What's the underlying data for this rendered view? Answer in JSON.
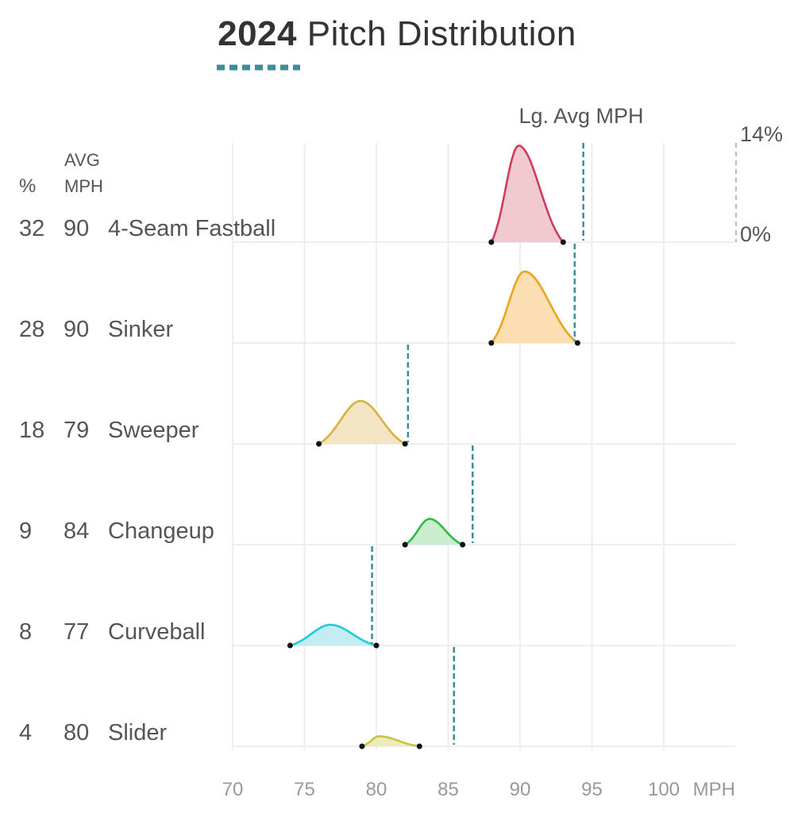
{
  "title": {
    "year": "2024",
    "text": "Pitch Distribution"
  },
  "headers": {
    "pct": "%",
    "avg_line1": "AVG",
    "avg_line2": "MPH"
  },
  "lg_avg_label": "Lg. Avg MPH",
  "colors": {
    "accent": "#3f8c99",
    "grid": "#eeeeee",
    "text": "#555555",
    "axis_text": "#999999"
  },
  "chart_data": {
    "type": "area",
    "x_axis": {
      "ticks": [
        70,
        75,
        80,
        85,
        90,
        95,
        100
      ],
      "unit_label": "MPH",
      "range": [
        66,
        101
      ]
    },
    "density_scale": {
      "min_label": "0%",
      "max_label": "14%",
      "min": 0,
      "max": 14
    },
    "pitches": [
      {
        "name": "4-Seam Fastball",
        "pct": "32",
        "avg_mph": "90",
        "lg_avg_mph": 94.4,
        "min_mph": 88,
        "max_mph": 93,
        "peak_mph": 89.9,
        "peak_density": 13.5,
        "color": "#cf3d5b",
        "fill": "#f0c3cc"
      },
      {
        "name": "Sinker",
        "pct": "28",
        "avg_mph": "90",
        "lg_avg_mph": 93.8,
        "min_mph": 88,
        "max_mph": 94,
        "peak_mph": 90.3,
        "peak_density": 10.0,
        "color": "#eaa51c",
        "fill": "#fbdcab"
      },
      {
        "name": "Sweeper",
        "pct": "18",
        "avg_mph": "79",
        "lg_avg_mph": 82.2,
        "min_mph": 76,
        "max_mph": 82,
        "peak_mph": 78.9,
        "peak_density": 6.0,
        "color": "#d8b23f",
        "fill": "#f2e2bc"
      },
      {
        "name": "Changeup",
        "pct": "9",
        "avg_mph": "84",
        "lg_avg_mph": 86.7,
        "min_mph": 82,
        "max_mph": 86,
        "peak_mph": 83.7,
        "peak_density": 3.6,
        "color": "#2dbb45",
        "fill": "#c3ebc9"
      },
      {
        "name": "Curveball",
        "pct": "8",
        "avg_mph": "77",
        "lg_avg_mph": 79.7,
        "min_mph": 74,
        "max_mph": 80,
        "peak_mph": 76.8,
        "peak_density": 2.9,
        "color": "#22c8dc",
        "fill": "#bdebf1"
      },
      {
        "name": "Slider",
        "pct": "4",
        "avg_mph": "80",
        "lg_avg_mph": 85.4,
        "min_mph": 79,
        "max_mph": 83,
        "peak_mph": 80.2,
        "peak_density": 1.4,
        "color": "#c9c43c",
        "fill": "#ece9b6"
      }
    ]
  }
}
